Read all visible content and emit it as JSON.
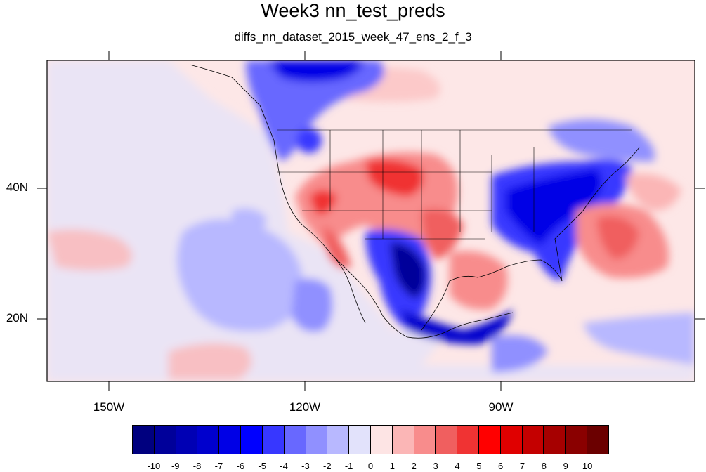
{
  "title": "Week3 nn_test_preds",
  "subtitle": "diffs_nn_dataset_2015_week_47_ens_2_f_3",
  "axes": {
    "lon_labels": [
      "150W",
      "120W",
      "90W"
    ],
    "lat_labels": [
      "40N",
      "20N"
    ]
  },
  "colorbar": {
    "labels": [
      "-10",
      "-9",
      "-8",
      "-7",
      "-6",
      "-5",
      "-4",
      "-3",
      "-2",
      "-1",
      "0",
      "1",
      "2",
      "3",
      "4",
      "5",
      "6",
      "7",
      "8",
      "9",
      "10"
    ],
    "colors": [
      "#00007f",
      "#00009a",
      "#0000b4",
      "#0000cd",
      "#0000e6",
      "#0000ff",
      "#3737ff",
      "#6868ff",
      "#9090ff",
      "#b8b8ff",
      "#e2e2fb",
      "#fde4e4",
      "#fbb6b6",
      "#f88c8c",
      "#f05f5f",
      "#f03333",
      "#ff0000",
      "#e00000",
      "#c40000",
      "#a60000",
      "#8a0000",
      "#6b0000"
    ]
  },
  "colors": {
    "background": "#ffffff",
    "ocean_base": "#fde7e7",
    "coastline": "#000000"
  }
}
